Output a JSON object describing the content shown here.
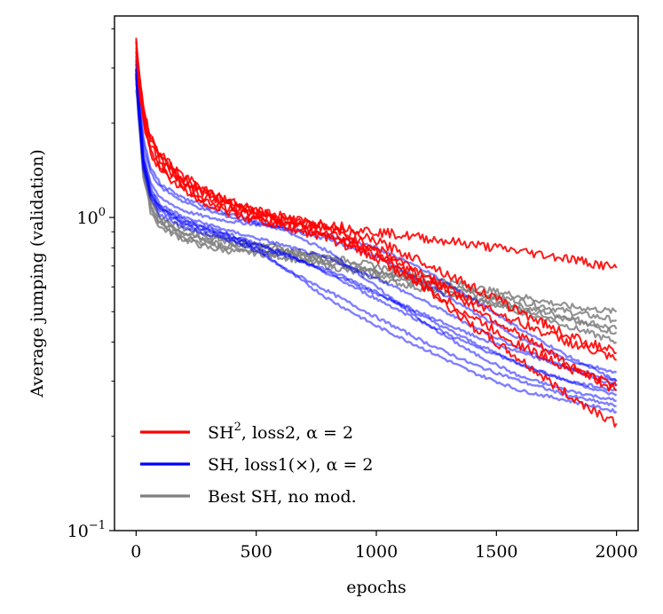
{
  "chart_data": {
    "type": "line",
    "title": "",
    "xlabel": "epochs",
    "ylabel": "Average jumping (validation)",
    "xlim": [
      -90,
      2090
    ],
    "ylim": [
      0.1,
      4.4
    ],
    "yscale": "log",
    "x_ticks": [
      0,
      500,
      1000,
      1500,
      2000
    ],
    "x_tick_labels": [
      "0",
      "500",
      "1000",
      "1500",
      "2000"
    ],
    "y_ticks": [
      0.1,
      1.0
    ],
    "y_tick_labels": [
      {
        "base": "10",
        "exp": "−1"
      },
      {
        "base": "10",
        "exp": "0"
      }
    ],
    "legend_position": "lower-left",
    "grid": false,
    "series": [
      {
        "name": "Best SH, no mod.",
        "color": "#808080",
        "group": "gray",
        "x": [
          0,
          10,
          30,
          60,
          100,
          200,
          300,
          400,
          500,
          600,
          800,
          1000,
          1200,
          1400,
          1600,
          1800,
          2000
        ],
        "values": [
          2.9,
          2.4,
          1.5,
          1.15,
          1.0,
          0.92,
          0.88,
          0.85,
          0.82,
          0.8,
          0.74,
          0.68,
          0.62,
          0.57,
          0.52,
          0.48,
          0.44
        ]
      },
      {
        "name": "Best SH, no mod.",
        "color": "#808080",
        "group": "gray",
        "x": [
          0,
          10,
          30,
          60,
          100,
          200,
          300,
          400,
          500,
          600,
          800,
          1000,
          1200,
          1400,
          1600,
          1800,
          2000
        ],
        "values": [
          2.7,
          2.2,
          1.4,
          1.08,
          0.95,
          0.86,
          0.82,
          0.8,
          0.78,
          0.76,
          0.72,
          0.67,
          0.63,
          0.58,
          0.54,
          0.5,
          0.47
        ]
      },
      {
        "name": "Best SH, no mod.",
        "color": "#808080",
        "group": "gray",
        "x": [
          0,
          10,
          30,
          60,
          100,
          200,
          300,
          400,
          500,
          600,
          800,
          1000,
          1200,
          1400,
          1600,
          1800,
          2000
        ],
        "values": [
          2.8,
          2.3,
          1.45,
          1.12,
          0.98,
          0.9,
          0.86,
          0.83,
          0.81,
          0.79,
          0.73,
          0.66,
          0.6,
          0.55,
          0.5,
          0.45,
          0.4
        ]
      },
      {
        "name": "Best SH, no mod.",
        "color": "#808080",
        "group": "gray",
        "x": [
          0,
          10,
          30,
          60,
          100,
          200,
          300,
          400,
          500,
          600,
          800,
          1000,
          1200,
          1400,
          1600,
          1800,
          2000
        ],
        "values": [
          2.6,
          2.1,
          1.35,
          1.05,
          0.93,
          0.85,
          0.8,
          0.78,
          0.77,
          0.75,
          0.7,
          0.64,
          0.59,
          0.55,
          0.51,
          0.47,
          0.43
        ]
      },
      {
        "name": "Best SH, no mod.",
        "color": "#808080",
        "group": "gray",
        "x": [
          0,
          10,
          30,
          60,
          100,
          200,
          300,
          400,
          500,
          600,
          800,
          1000,
          1200,
          1400,
          1600,
          1800,
          2000
        ],
        "values": [
          2.75,
          2.25,
          1.42,
          1.1,
          0.96,
          0.88,
          0.84,
          0.81,
          0.79,
          0.78,
          0.75,
          0.7,
          0.65,
          0.6,
          0.56,
          0.52,
          0.5
        ]
      },
      {
        "name": "SH, loss1(×), α = 2",
        "color": "#0000ff",
        "group": "blue",
        "x": [
          0,
          10,
          30,
          60,
          100,
          200,
          300,
          400,
          500,
          600,
          800,
          1000,
          1200,
          1400,
          1600,
          1800,
          2000
        ],
        "values": [
          3.1,
          2.4,
          1.6,
          1.3,
          1.15,
          1.05,
          1.0,
          0.97,
          0.95,
          0.93,
          0.88,
          0.8,
          0.68,
          0.55,
          0.44,
          0.36,
          0.3
        ]
      },
      {
        "name": "SH, loss1(×), α = 2",
        "color": "#0000ff",
        "group": "blue",
        "x": [
          0,
          10,
          30,
          60,
          100,
          200,
          300,
          400,
          500,
          600,
          800,
          1000,
          1200,
          1400,
          1600,
          1800,
          2000
        ],
        "values": [
          3.0,
          2.3,
          1.5,
          1.2,
          1.08,
          0.98,
          0.93,
          0.88,
          0.8,
          0.7,
          0.55,
          0.45,
          0.38,
          0.32,
          0.28,
          0.26,
          0.24
        ]
      },
      {
        "name": "SH, loss1(×), α = 2",
        "color": "#0000ff",
        "group": "blue",
        "x": [
          0,
          10,
          30,
          60,
          100,
          200,
          300,
          400,
          500,
          600,
          800,
          1000,
          1200,
          1400,
          1600,
          1800,
          2000
        ],
        "values": [
          2.9,
          2.2,
          1.45,
          1.18,
          1.05,
          0.95,
          0.9,
          0.85,
          0.78,
          0.7,
          0.58,
          0.48,
          0.4,
          0.34,
          0.3,
          0.27,
          0.25
        ]
      },
      {
        "name": "SH, loss1(×), α = 2",
        "color": "#0000ff",
        "group": "blue",
        "x": [
          0,
          10,
          30,
          60,
          100,
          200,
          300,
          400,
          500,
          600,
          800,
          1000,
          1200,
          1400,
          1600,
          1800,
          2000
        ],
        "values": [
          3.2,
          2.5,
          1.7,
          1.4,
          1.25,
          1.12,
          1.05,
          1.0,
          0.96,
          0.92,
          0.78,
          0.6,
          0.46,
          0.37,
          0.31,
          0.28,
          0.26
        ]
      },
      {
        "name": "SH, loss1(×), α = 2",
        "color": "#0000ff",
        "group": "blue",
        "x": [
          0,
          10,
          30,
          60,
          100,
          200,
          300,
          400,
          500,
          600,
          800,
          1000,
          1200,
          1400,
          1600,
          1800,
          2000
        ],
        "values": [
          2.8,
          2.15,
          1.42,
          1.15,
          1.02,
          0.93,
          0.88,
          0.84,
          0.8,
          0.76,
          0.68,
          0.58,
          0.48,
          0.4,
          0.34,
          0.3,
          0.27
        ]
      },
      {
        "name": "SH, loss1(×), α = 2",
        "color": "#0000ff",
        "group": "blue",
        "x": [
          0,
          10,
          30,
          60,
          100,
          200,
          300,
          400,
          500,
          600,
          800,
          1000,
          1200,
          1400,
          1600,
          1800,
          2000
        ],
        "values": [
          3.0,
          2.35,
          1.55,
          1.25,
          1.1,
          1.0,
          0.95,
          0.9,
          0.86,
          0.82,
          0.74,
          0.64,
          0.54,
          0.45,
          0.38,
          0.33,
          0.29
        ]
      },
      {
        "name": "SH, loss1(×), α = 2",
        "color": "#0000ff",
        "group": "blue",
        "x": [
          0,
          10,
          30,
          60,
          100,
          200,
          300,
          400,
          500,
          600,
          800,
          1000,
          1200,
          1400,
          1600,
          1800,
          2000
        ],
        "values": [
          2.95,
          2.3,
          1.52,
          1.22,
          1.08,
          0.97,
          0.92,
          0.87,
          0.83,
          0.78,
          0.66,
          0.55,
          0.46,
          0.39,
          0.34,
          0.3,
          0.28
        ]
      },
      {
        "name": "SH, loss1(×), α = 2",
        "color": "#0000ff",
        "group": "blue",
        "x": [
          0,
          10,
          30,
          60,
          100,
          200,
          300,
          400,
          500,
          600,
          800,
          1000,
          1200,
          1400,
          1600,
          1800,
          2000
        ],
        "values": [
          3.3,
          2.6,
          1.8,
          1.45,
          1.28,
          1.15,
          1.08,
          1.02,
          0.97,
          0.93,
          0.85,
          0.75,
          0.62,
          0.5,
          0.41,
          0.35,
          0.32
        ]
      },
      {
        "name": "SH, loss1(×), α = 2",
        "color": "#0000ff",
        "group": "blue",
        "x": [
          0,
          10,
          30,
          60,
          100,
          200,
          300,
          400,
          500,
          600,
          800,
          1000,
          1200,
          1400,
          1600,
          1800,
          2000
        ],
        "values": [
          2.85,
          2.2,
          1.48,
          1.2,
          1.06,
          0.96,
          0.91,
          0.86,
          0.82,
          0.77,
          0.67,
          0.57,
          0.49,
          0.42,
          0.37,
          0.33,
          0.3
        ]
      },
      {
        "name": "SH², loss2, α = 2",
        "color": "#ff0000",
        "group": "red",
        "x": [
          0,
          10,
          30,
          60,
          100,
          200,
          300,
          400,
          500,
          600,
          800,
          1000,
          1200,
          1400,
          1600,
          1800,
          2000
        ],
        "values": [
          3.8,
          3.0,
          2.3,
          1.8,
          1.6,
          1.35,
          1.2,
          1.12,
          1.05,
          1.0,
          0.95,
          0.9,
          0.86,
          0.82,
          0.78,
          0.74,
          0.69
        ]
      },
      {
        "name": "SH², loss2, α = 2",
        "color": "#ff0000",
        "group": "red",
        "x": [
          0,
          10,
          30,
          60,
          100,
          200,
          300,
          400,
          500,
          600,
          800,
          1000,
          1200,
          1400,
          1600,
          1800,
          2000
        ],
        "values": [
          3.5,
          2.8,
          2.1,
          1.7,
          1.5,
          1.28,
          1.15,
          1.08,
          1.02,
          0.97,
          0.9,
          0.78,
          0.6,
          0.45,
          0.35,
          0.27,
          0.22
        ]
      },
      {
        "name": "SH², loss2, α = 2",
        "color": "#ff0000",
        "group": "red",
        "x": [
          0,
          10,
          30,
          60,
          100,
          200,
          300,
          400,
          500,
          600,
          800,
          1000,
          1200,
          1400,
          1600,
          1800,
          2000
        ],
        "values": [
          3.6,
          2.9,
          2.2,
          1.75,
          1.55,
          1.3,
          1.18,
          1.1,
          1.04,
          0.99,
          0.92,
          0.8,
          0.66,
          0.52,
          0.42,
          0.34,
          0.28
        ]
      },
      {
        "name": "SH², loss2, α = 2",
        "color": "#ff0000",
        "group": "red",
        "x": [
          0,
          10,
          30,
          60,
          100,
          200,
          300,
          400,
          500,
          600,
          800,
          1000,
          1200,
          1400,
          1600,
          1800,
          2000
        ],
        "values": [
          3.4,
          2.7,
          2.05,
          1.65,
          1.45,
          1.25,
          1.12,
          1.05,
          1.0,
          0.96,
          0.88,
          0.76,
          0.64,
          0.54,
          0.46,
          0.4,
          0.35
        ]
      },
      {
        "name": "SH², loss2, α = 2",
        "color": "#ff0000",
        "group": "red",
        "x": [
          0,
          10,
          30,
          60,
          100,
          200,
          300,
          400,
          500,
          600,
          800,
          1000,
          1200,
          1400,
          1600,
          1800,
          2000
        ],
        "values": [
          3.7,
          2.95,
          2.25,
          1.78,
          1.58,
          1.33,
          1.2,
          1.12,
          1.06,
          1.01,
          0.93,
          0.84,
          0.72,
          0.6,
          0.5,
          0.42,
          0.37
        ]
      },
      {
        "name": "SH², loss2, α = 2",
        "color": "#ff0000",
        "group": "red",
        "x": [
          0,
          10,
          30,
          60,
          100,
          200,
          300,
          400,
          500,
          600,
          800,
          1000,
          1200,
          1400,
          1600,
          1800,
          2000
        ],
        "values": [
          3.3,
          2.65,
          2.0,
          1.62,
          1.43,
          1.22,
          1.1,
          1.03,
          0.98,
          0.94,
          0.86,
          0.74,
          0.6,
          0.48,
          0.39,
          0.33,
          0.29
        ]
      }
    ],
    "legend": [
      {
        "label_main": "SH",
        "label_sup": "2",
        "label_rest": ", loss2, α = 2",
        "color": "#ff0000"
      },
      {
        "label_main": "SH, loss1(×), α = 2",
        "label_sup": "",
        "label_rest": "",
        "color": "#0000ff"
      },
      {
        "label_main": "Best SH, no mod.",
        "label_sup": "",
        "label_rest": "",
        "color": "#808080"
      }
    ]
  }
}
